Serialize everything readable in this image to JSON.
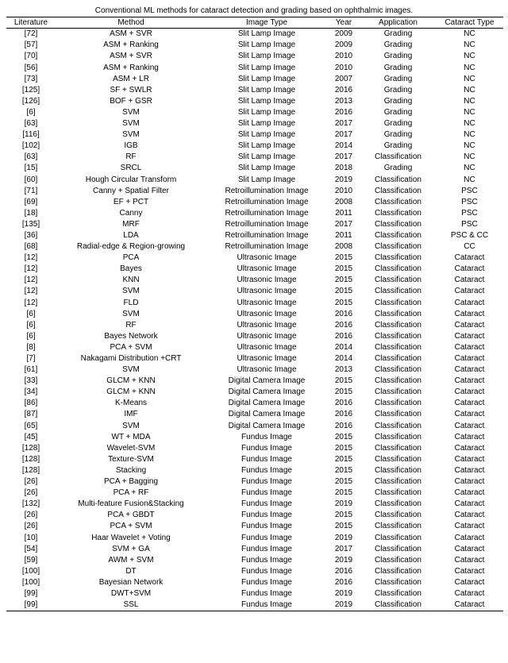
{
  "caption": "Conventional ML methods for cataract detection and grading based on ophthalmic images.",
  "columns": [
    "Literature",
    "Method",
    "Image Type",
    "Year",
    "Application",
    "Cataract Type"
  ],
  "rows": [
    [
      "[72]",
      "ASM + SVR",
      "Slit Lamp Image",
      "2009",
      "Grading",
      "NC"
    ],
    [
      "[57]",
      "ASM + Ranking",
      "Slit Lamp Image",
      "2009",
      "Grading",
      "NC"
    ],
    [
      "[70]",
      "ASM + SVR",
      "Slit Lamp Image",
      "2010",
      "Grading",
      "NC"
    ],
    [
      "[56]",
      "ASM + Ranking",
      "Slit Lamp Image",
      "2010",
      "Grading",
      "NC"
    ],
    [
      "[73]",
      "ASM + LR",
      "Slit Lamp Image",
      "2007",
      "Grading",
      "NC"
    ],
    [
      "[125]",
      "SF + SWLR",
      "Slit Lamp Image",
      "2016",
      "Grading",
      "NC"
    ],
    [
      "[126]",
      "BOF + GSR",
      "Slit Lamp Image",
      "2013",
      "Grading",
      "NC"
    ],
    [
      "[6]",
      "SVM",
      "Slit Lamp Image",
      "2016",
      "Grading",
      "NC"
    ],
    [
      "[63]",
      "SVM",
      "Slit Lamp Image",
      "2017",
      "Grading",
      "NC"
    ],
    [
      "[116]",
      "SVM",
      "Slit Lamp Image",
      "2017",
      "Grading",
      "NC"
    ],
    [
      "[102]",
      "IGB",
      "Slit Lamp Image",
      "2014",
      "Grading",
      "NC"
    ],
    [
      "[63]",
      "RF",
      "Slit Lamp Image",
      "2017",
      "Classification",
      "NC"
    ],
    [
      "[15]",
      "SRCL",
      "Slit Lamp Image",
      "2018",
      "Grading",
      "NC"
    ],
    [
      "[60]",
      "Hough Circular Transform",
      "Slit Lamp Image",
      "2019",
      "Classification",
      "NC"
    ],
    [
      "[71]",
      "Canny + Spatial Filter",
      "Retroillumination Image",
      "2010",
      "Classification",
      "PSC"
    ],
    [
      "[69]",
      "EF + PCT",
      "Retroillumination Image",
      "2008",
      "Classification",
      "PSC"
    ],
    [
      "[18]",
      "Canny",
      "Retroillumination Image",
      "2011",
      "Classification",
      "PSC"
    ],
    [
      "[135]",
      "MRF",
      "Retroillumination Image",
      "2017",
      "Classification",
      "PSC"
    ],
    [
      "[36]",
      "LDA",
      "Retroillumination Image",
      "2011",
      "Classification",
      "PSC & CC"
    ],
    [
      "[68]",
      "Radial-edge & Region-growing",
      "Retroillumination Image",
      "2008",
      "Classification",
      "CC"
    ],
    [
      "[12]",
      "PCA",
      "Ultrasonic Image",
      "2015",
      "Classification",
      "Cataract"
    ],
    [
      "[12]",
      "Bayes",
      "Ultrasonic Image",
      "2015",
      "Classification",
      "Cataract"
    ],
    [
      "[12]",
      "KNN",
      "Ultrasonic Image",
      "2015",
      "Classification",
      "Cataract"
    ],
    [
      "[12]",
      "SVM",
      "Ultrasonic Image",
      "2015",
      "Classification",
      "Cataract"
    ],
    [
      "[12]",
      "FLD",
      "Ultrasonic Image",
      "2015",
      "Classification",
      "Cataract"
    ],
    [
      "[6]",
      "SVM",
      "Ultrasonic Image",
      "2016",
      "Classification",
      "Cataract"
    ],
    [
      "[6]",
      "RF",
      "Ultrasonic Image",
      "2016",
      "Classification",
      "Cataract"
    ],
    [
      "[6]",
      "Bayes Network",
      "Ultrasonic Image",
      "2016",
      "Classification",
      "Cataract"
    ],
    [
      "[8]",
      "PCA + SVM",
      "Ultrasonic Image",
      "2014",
      "Classification",
      "Cataract"
    ],
    [
      "[7]",
      "Nakagami Distribution +CRT",
      "Ultrasonic Image",
      "2014",
      "Classification",
      "Cataract"
    ],
    [
      "[61]",
      "SVM",
      "Ultrasonic Image",
      "2013",
      "Classification",
      "Cataract"
    ],
    [
      "[33]",
      "GLCM + KNN",
      "Digital Camera Image",
      "2015",
      "Classification",
      "Cataract"
    ],
    [
      "[34]",
      "GLCM + KNN",
      "Digital Camera Image",
      "2015",
      "Classification",
      "Cataract"
    ],
    [
      "[86]",
      "K-Means",
      "Digital Camera Image",
      "2016",
      "Classification",
      "Cataract"
    ],
    [
      "[87]",
      "IMF",
      "Digital Camera Image",
      "2016",
      "Classification",
      "Cataract"
    ],
    [
      "[65]",
      "SVM",
      "Digital Camera Image",
      "2016",
      "Classification",
      "Cataract"
    ],
    [
      "[45]",
      "WT + MDA",
      "Fundus Image",
      "2015",
      "Classification",
      "Cataract"
    ],
    [
      "[128]",
      "Wavelet-SVM",
      "Fundus Image",
      "2015",
      "Classification",
      "Cataract"
    ],
    [
      "[128]",
      "Texture-SVM",
      "Fundus Image",
      "2015",
      "Classification",
      "Cataract"
    ],
    [
      "[128]",
      "Stacking",
      "Fundus Image",
      "2015",
      "Classification",
      "Cataract"
    ],
    [
      "[26]",
      "PCA + Bagging",
      "Fundus Image",
      "2015",
      "Classification",
      "Cataract"
    ],
    [
      "[26]",
      "PCA + RF",
      "Fundus Image",
      "2015",
      "Classification",
      "Cataract"
    ],
    [
      "[132]",
      "Multi-feature Fusion&Stacking",
      "Fundus Image",
      "2019",
      "Classification",
      "Cataract"
    ],
    [
      "[26]",
      "PCA + GBDT",
      "Fundus Image",
      "2015",
      "Classification",
      "Cataract"
    ],
    [
      "[26]",
      "PCA + SVM",
      "Fundus Image",
      "2015",
      "Classification",
      "Cataract"
    ],
    [
      "[10]",
      "Haar Wavelet + Voting",
      "Fundus Image",
      "2019",
      "Classification",
      "Cataract"
    ],
    [
      "[54]",
      "SVM + GA",
      "Fundus Image",
      "2017",
      "Classification",
      "Cataract"
    ],
    [
      "[59]",
      "AWM + SVM",
      "Fundus Image",
      "2019",
      "Classification",
      "Cataract"
    ],
    [
      "[100]",
      "DT",
      "Fundus Image",
      "2016",
      "Classification",
      "Cataract"
    ],
    [
      "[100]",
      "Bayesian Network",
      "Fundus Image",
      "2016",
      "Classification",
      "Cataract"
    ],
    [
      "[99]",
      "DWT+SVM",
      "Fundus Image",
      "2019",
      "Classification",
      "Cataract"
    ],
    [
      "[99]",
      "SSL",
      "Fundus Image",
      "2019",
      "Classification",
      "Cataract"
    ]
  ]
}
